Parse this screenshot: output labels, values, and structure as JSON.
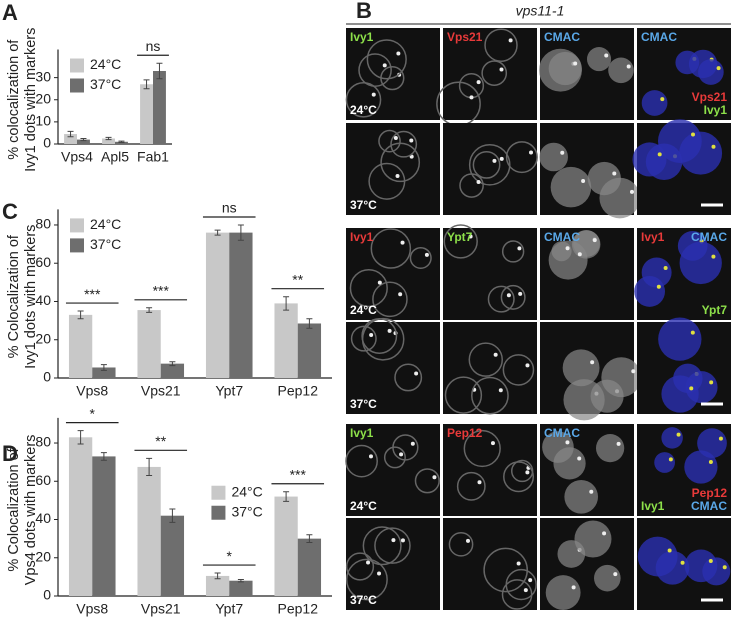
{
  "chart_data": [
    {
      "type": "bar",
      "panel": "A",
      "y_label": [
        "% colocalization of",
        "Ivy1 dots with markers"
      ],
      "categories": [
        "Vps4",
        "Apl5",
        "Fab1"
      ],
      "series": [
        {
          "name": "24°C",
          "color": "#c8c8c8",
          "values": [
            4.5,
            2.5,
            27
          ],
          "errors": [
            1.2,
            0.5,
            2
          ]
        },
        {
          "name": "37°C",
          "color": "#6e6e6e",
          "values": [
            2,
            1,
            33
          ],
          "errors": [
            0.5,
            0.3,
            3.5
          ]
        }
      ],
      "ylim": [
        0,
        40
      ],
      "yticks": [
        0,
        10,
        20,
        30
      ],
      "legend": "upper left",
      "annotations": [
        {
          "text": "ns",
          "category": 2
        }
      ]
    },
    {
      "type": "bar",
      "panel": "C",
      "y_label": [
        "% Colocalization of",
        "Ivy1 dots with markers"
      ],
      "categories": [
        "Vps8",
        "Vps21",
        "Ypt7",
        "Pep12"
      ],
      "series": [
        {
          "name": "24°C",
          "color": "#c8c8c8",
          "values": [
            33,
            35.5,
            76,
            39
          ],
          "errors": [
            2,
            1.2,
            1.3,
            3.5
          ]
        },
        {
          "name": "37°C",
          "color": "#6e6e6e",
          "values": [
            5.5,
            7.5,
            76,
            28.5
          ],
          "errors": [
            1.5,
            1,
            4,
            2.5
          ]
        }
      ],
      "ylim": [
        0,
        85
      ],
      "yticks": [
        0,
        20,
        40,
        60,
        80
      ],
      "legend": "upper left",
      "annotations": [
        {
          "text": "***",
          "category": 0
        },
        {
          "text": "***",
          "category": 1
        },
        {
          "text": "ns",
          "category": 2
        },
        {
          "text": "**",
          "category": 3
        }
      ]
    },
    {
      "type": "bar",
      "panel": "D",
      "y_label": [
        "% Colocalization of",
        "Vps4 dots with markers"
      ],
      "categories": [
        "Vps8",
        "Vps21",
        "Ypt7",
        "Pep12"
      ],
      "series": [
        {
          "name": "24°C",
          "color": "#c8c8c8",
          "values": [
            83,
            67.5,
            10.5,
            52
          ],
          "errors": [
            3.5,
            4.5,
            1.5,
            2.5
          ]
        },
        {
          "name": "37°C",
          "color": "#6e6e6e",
          "values": [
            73,
            42,
            8,
            30
          ],
          "errors": [
            2,
            3.5,
            0.6,
            2
          ]
        }
      ],
      "ylim": [
        0,
        90
      ],
      "yticks": [
        0,
        20,
        40,
        60,
        80
      ],
      "legend": "center right",
      "annotations": [
        {
          "text": "*",
          "category": 0
        },
        {
          "text": "**",
          "category": 1
        },
        {
          "text": "*",
          "category": 2
        },
        {
          "text": "***",
          "category": 3
        }
      ]
    }
  ],
  "panel_b": {
    "letter": "B",
    "title": "vps11-1",
    "groups": [
      {
        "columns": [
          {
            "text": "Ivy1",
            "color": "#8de04a"
          },
          {
            "text": "Vps21",
            "color": "#e83a3a"
          },
          {
            "text": "CMAC",
            "color": "#5aa8e8"
          }
        ],
        "merge_top": [
          [
            {
              "text": "CMAC",
              "color": "#5aa8e8"
            }
          ]
        ],
        "merge_bottom": [
          [
            {
              "text": "Vps21",
              "color": "#e83a3a"
            }
          ],
          [
            {
              "text": "Ivy1",
              "color": "#8de04a"
            }
          ]
        ],
        "temps": [
          "24°C",
          "37°C"
        ]
      },
      {
        "columns": [
          {
            "text": "Ivy1",
            "color": "#e83a3a"
          },
          {
            "text": "Ypt7",
            "color": "#8de04a"
          },
          {
            "text": "CMAC",
            "color": "#5aa8e8"
          }
        ],
        "merge_top": [
          [
            {
              "text": "Ivy1",
              "color": "#e83a3a"
            },
            {
              "text": "CMAC",
              "color": "#5aa8e8"
            }
          ]
        ],
        "merge_bottom": [
          [
            {
              "text": "Ypt7",
              "color": "#8de04a"
            }
          ]
        ],
        "temps": [
          "24°C",
          "37°C"
        ]
      },
      {
        "columns": [
          {
            "text": "Ivy1",
            "color": "#8de04a"
          },
          {
            "text": "Pep12",
            "color": "#e83a3a"
          },
          {
            "text": "CMAC",
            "color": "#5aa8e8"
          }
        ],
        "merge_top": [],
        "merge_bottom": [
          [
            {
              "text": "Pep12",
              "color": "#e83a3a"
            }
          ],
          [
            {
              "text": "Ivy1",
              "color": "#8de04a"
            },
            {
              "text": "CMAC",
              "color": "#5aa8e8"
            }
          ]
        ],
        "temps": [
          "24°C",
          "37°C"
        ]
      }
    ]
  }
}
